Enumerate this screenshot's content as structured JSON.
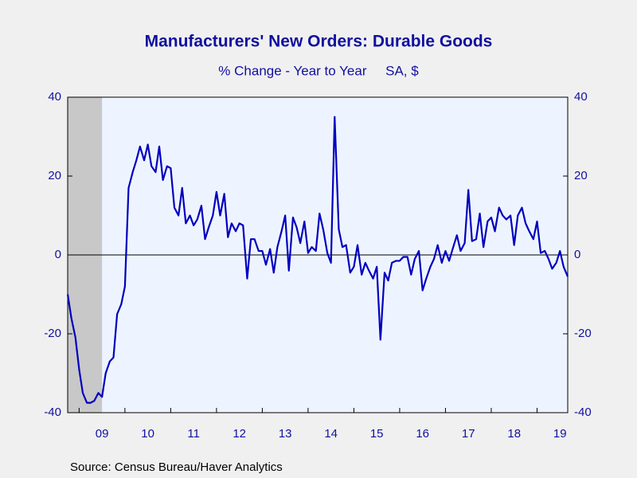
{
  "chart_data": {
    "type": "line",
    "title": "Manufacturers' New Orders: Durable Goods",
    "subtitle": "% Change - Year to Year     SA, $",
    "source": "Source:  Census Bureau/Haver Analytics",
    "color": "#0000c0",
    "recession": [
      2008.75,
      2009.5
    ],
    "zero_line": true,
    "xlim": [
      2008.75,
      2019.67
    ],
    "xticks": [
      {
        "value": 2009.5,
        "label": "09"
      },
      {
        "value": 2010.5,
        "label": "10"
      },
      {
        "value": 2011.5,
        "label": "11"
      },
      {
        "value": 2012.5,
        "label": "12"
      },
      {
        "value": 2013.5,
        "label": "13"
      },
      {
        "value": 2014.5,
        "label": "14"
      },
      {
        "value": 2015.5,
        "label": "15"
      },
      {
        "value": 2016.5,
        "label": "16"
      },
      {
        "value": 2017.5,
        "label": "17"
      },
      {
        "value": 2018.5,
        "label": "18"
      },
      {
        "value": 2019.5,
        "label": "19"
      }
    ],
    "ylim": [
      -40,
      40
    ],
    "yticks": [
      -40,
      -20,
      0,
      20,
      40
    ],
    "y2lim": [
      -40,
      40
    ],
    "y2ticks": [
      -40,
      -20,
      0,
      20,
      40
    ],
    "x": [
      2008.75,
      2008.83,
      2008.92,
      2009.0,
      2009.08,
      2009.17,
      2009.25,
      2009.33,
      2009.42,
      2009.5,
      2009.58,
      2009.67,
      2009.75,
      2009.83,
      2009.92,
      2010.0,
      2010.08,
      2010.17,
      2010.25,
      2010.33,
      2010.42,
      2010.5,
      2010.58,
      2010.67,
      2010.75,
      2010.83,
      2010.92,
      2011.0,
      2011.08,
      2011.17,
      2011.25,
      2011.33,
      2011.42,
      2011.5,
      2011.58,
      2011.67,
      2011.75,
      2011.83,
      2011.92,
      2012.0,
      2012.08,
      2012.17,
      2012.25,
      2012.33,
      2012.42,
      2012.5,
      2012.58,
      2012.67,
      2012.75,
      2012.83,
      2012.92,
      2013.0,
      2013.08,
      2013.17,
      2013.25,
      2013.33,
      2013.42,
      2013.5,
      2013.58,
      2013.67,
      2013.75,
      2013.83,
      2013.92,
      2014.0,
      2014.08,
      2014.17,
      2014.25,
      2014.33,
      2014.42,
      2014.5,
      2014.58,
      2014.67,
      2014.75,
      2014.83,
      2014.92,
      2015.0,
      2015.08,
      2015.17,
      2015.25,
      2015.33,
      2015.42,
      2015.5,
      2015.58,
      2015.67,
      2015.75,
      2015.83,
      2015.92,
      2016.0,
      2016.08,
      2016.17,
      2016.25,
      2016.33,
      2016.42,
      2016.5,
      2016.58,
      2016.67,
      2016.75,
      2016.83,
      2016.92,
      2017.0,
      2017.08,
      2017.17,
      2017.25,
      2017.33,
      2017.42,
      2017.5,
      2017.58,
      2017.67,
      2017.75,
      2017.83,
      2017.92,
      2018.0,
      2018.08,
      2018.17,
      2018.25,
      2018.33,
      2018.42,
      2018.5,
      2018.58,
      2018.67,
      2018.75,
      2018.83,
      2018.92,
      2019.0,
      2019.08,
      2019.17,
      2019.25,
      2019.33,
      2019.42,
      2019.5,
      2019.58,
      2019.67
    ],
    "values": [
      -10,
      -16,
      -21,
      -29,
      -35,
      -37.5,
      -37.5,
      -37,
      -35,
      -36,
      -30,
      -27,
      -26,
      -15,
      -12.5,
      -8,
      17,
      21,
      24,
      27.5,
      24,
      28,
      22.5,
      21,
      27.5,
      19,
      22.5,
      22,
      12,
      10,
      17,
      8,
      10,
      7.5,
      9,
      12.5,
      4,
      7,
      10,
      16,
      10,
      15.5,
      4.5,
      8,
      6,
      8,
      7.5,
      -6,
      4,
      4,
      1,
      1,
      -2.5,
      1.5,
      -4.5,
      2,
      6,
      10,
      -4,
      9.5,
      7,
      3,
      8.5,
      0.5,
      2,
      1,
      10.5,
      6.5,
      0.5,
      -2,
      35,
      6.5,
      2,
      2.5,
      -4.5,
      -3,
      2.5,
      -5,
      -2,
      -4,
      -6,
      -3,
      -21.5,
      -4.5,
      -6.5,
      -2,
      -1.5,
      -1.5,
      -0.5,
      -0.5,
      -5,
      -1,
      1,
      -9,
      -6,
      -3,
      -1,
      2.5,
      -2,
      1,
      -1.5,
      2,
      5,
      1,
      3,
      16.5,
      3.5,
      4,
      10.5,
      2,
      8.5,
      9.5,
      6,
      12,
      10,
      9,
      10,
      2.5,
      10,
      12,
      8,
      6,
      4,
      8.5,
      0.5,
      1,
      -1,
      -3.5,
      -2,
      1,
      -3,
      -5.5
    ]
  }
}
